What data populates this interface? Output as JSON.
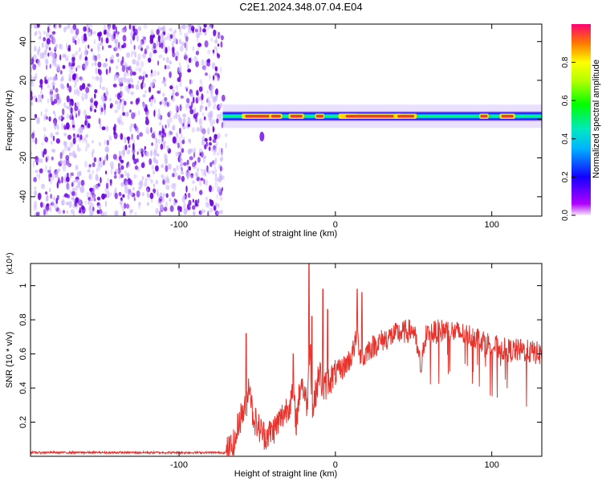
{
  "title": "C2E1.2024.348.07.04.E04",
  "colors": {
    "noise": "#6a00e0",
    "noise_light": "#c9b3ff",
    "snr_line": "#e8322b",
    "frame": "#000000"
  },
  "chart_data": [
    {
      "type": "heatmap",
      "xlabel": "Height of straight line (km)",
      "ylabel": "Frequency (Hz)",
      "xlim": [
        -195,
        132
      ],
      "ylim": [
        -50,
        49
      ],
      "x_ticks": [
        -100,
        0,
        100
      ],
      "x_tick_labels": [
        "-100",
        "0",
        "100"
      ],
      "y_ticks": [
        -40,
        -20,
        0,
        20,
        40
      ],
      "y_tick_labels": [
        "-40",
        "-20",
        "0",
        "20",
        "40"
      ],
      "colorbar": {
        "label": "Normalized spectral amplitude",
        "range": [
          0,
          1
        ],
        "ticks": [
          0.0,
          0.2,
          0.4,
          0.6,
          0.8
        ],
        "tick_labels": [
          "0.0",
          "0.2",
          "0.4",
          "0.6",
          "0.8"
        ],
        "colormap": "rainbow"
      },
      "noise_region_x": [
        -195,
        -72
      ],
      "signal_band": {
        "x_start": -72,
        "x_end": 132,
        "center_freq_hz": 1.5,
        "width_hz": 5
      }
    },
    {
      "type": "line",
      "xlabel": "Height of straight line (km)",
      "ylabel": "SNR (10 * v/v)",
      "y_scale_label": "(x10⁴)",
      "xlim": [
        -195,
        132
      ],
      "ylim": [
        0,
        1.13
      ],
      "x_ticks": [
        -100,
        0,
        100
      ],
      "x_tick_labels": [
        "-100",
        "0",
        "100"
      ],
      "y_ticks": [
        0.2,
        0.4,
        0.6,
        0.8,
        1
      ],
      "y_tick_labels": [
        "0.2",
        "0.4",
        "0.6",
        "0.8",
        "1"
      ],
      "series": [
        {
          "x": [
            -195,
            -150,
            -100,
            -70,
            -64,
            -62,
            -57,
            -55,
            -53,
            -50,
            -45,
            -40,
            -35,
            -30,
            -27,
            -25,
            -22,
            -18,
            -16,
            -15,
            -13,
            -10,
            -8,
            -5,
            0,
            5,
            10,
            14,
            16,
            18,
            20,
            25,
            30,
            40,
            50,
            55,
            57,
            60,
            70,
            80,
            90,
            100,
            110,
            120,
            132
          ],
          "y": [
            0.022,
            0.022,
            0.022,
            0.022,
            0.08,
            0.2,
            0.3,
            0.45,
            0.25,
            0.18,
            0.12,
            0.15,
            0.22,
            0.3,
            0.35,
            0.2,
            0.45,
            0.3,
            0.7,
            0.25,
            0.35,
            0.5,
            0.38,
            0.44,
            0.48,
            0.52,
            0.58,
            0.7,
            0.6,
            0.56,
            0.62,
            0.65,
            0.68,
            0.72,
            0.74,
            0.5,
            0.7,
            0.72,
            0.74,
            0.72,
            0.7,
            0.65,
            0.62,
            0.62,
            0.6
          ]
        }
      ]
    }
  ]
}
